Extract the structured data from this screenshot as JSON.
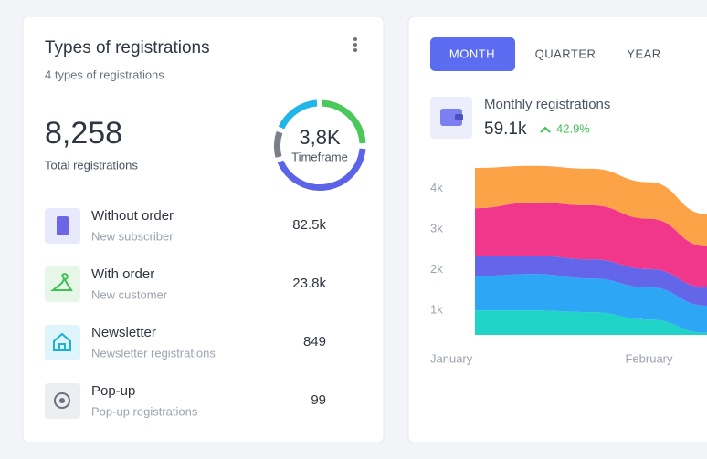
{
  "header": {
    "title": "Types of registrations",
    "subtitle": "4 types of registrations"
  },
  "total": {
    "value": "8,258",
    "label": "Total registrations"
  },
  "donut": {
    "value": "3,8K",
    "label": "Timeframe"
  },
  "items": [
    {
      "title": "Without order",
      "subtitle": "New subscriber",
      "value": "82.5k"
    },
    {
      "title": "With order",
      "subtitle": "New customer",
      "value": "23.8k"
    },
    {
      "title": "Newsletter",
      "subtitle": "Newsletter registrations",
      "value": "849"
    },
    {
      "title": "Pop-up",
      "subtitle": "Pop-up registrations",
      "value": "99"
    }
  ],
  "tabs": [
    "MONTH",
    "QUARTER",
    "YEAR"
  ],
  "metric": {
    "title": "Monthly registrations",
    "value": "59.1k",
    "change": "42.9%"
  },
  "chart_data": {
    "type": "area",
    "stacked": true,
    "categories": [
      "January",
      null,
      null,
      "February",
      null
    ],
    "series": [
      {
        "color": "#1fd3c6",
        "values": [
          1000,
          1000,
          960,
          780,
          450
        ]
      },
      {
        "color": "#2ea6f6",
        "values": [
          850,
          900,
          830,
          790,
          670
        ]
      },
      {
        "color": "#6466ea",
        "values": [
          500,
          450,
          470,
          450,
          450
        ]
      },
      {
        "color": "#f0378b",
        "values": [
          1170,
          1310,
          1330,
          1240,
          1010
        ]
      },
      {
        "color": "#fca247",
        "values": [
          990,
          900,
          900,
          900,
          790
        ]
      }
    ],
    "ylim": [
      400,
      4600
    ],
    "yticks": [
      {
        "value": 1000,
        "label": "1k"
      },
      {
        "value": 2000,
        "label": "2k"
      },
      {
        "value": 3000,
        "label": "3k"
      },
      {
        "value": 4000,
        "label": "4k"
      }
    ],
    "grid": false
  }
}
